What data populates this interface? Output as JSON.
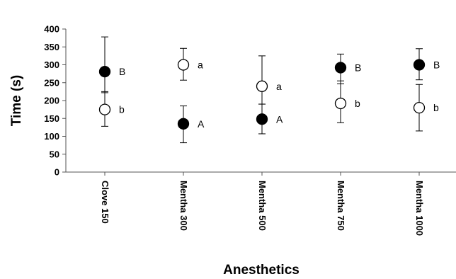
{
  "chart_data": {
    "type": "scatter",
    "title": "",
    "xlabel": "Anesthetics",
    "ylabel": "Time (s)",
    "ylim": [
      0,
      400
    ],
    "yticks": [
      0,
      50,
      100,
      150,
      200,
      250,
      300,
      350,
      400
    ],
    "grid": false,
    "legend": "none",
    "categories": [
      "Clove 150",
      "Mentha 300",
      "Mentha 500",
      "Mentha 750",
      "Mentha 1000"
    ],
    "series": [
      {
        "marker": "filled-circle",
        "color": "#000000",
        "values": [
          281,
          135,
          148,
          292,
          300
        ],
        "err_low": [
          222,
          82,
          107,
          247,
          258
        ],
        "err_high": [
          378,
          185,
          190,
          330,
          345
        ],
        "labels": [
          "B",
          "A",
          "A",
          "B",
          "B"
        ]
      },
      {
        "marker": "open-circle",
        "color": "#000000",
        "values": [
          175,
          300,
          240,
          192,
          180
        ],
        "err_low": [
          128,
          257,
          190,
          138,
          115
        ],
        "err_high": [
          225,
          346,
          325,
          255,
          245
        ],
        "labels": [
          "b",
          "a",
          "a",
          "b",
          "b"
        ]
      }
    ]
  }
}
